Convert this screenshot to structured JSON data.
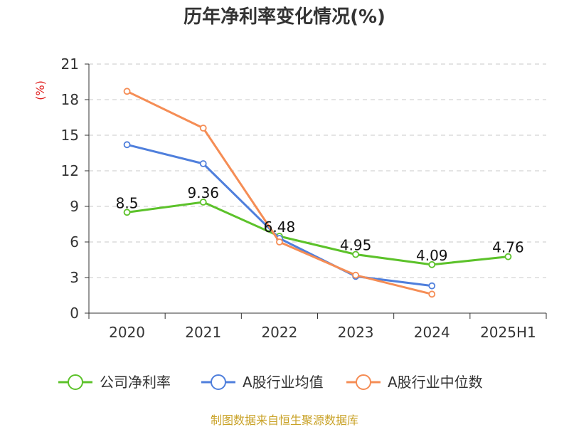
{
  "chart_data": {
    "type": "line",
    "title": "历年净利率变化情况(%)",
    "ylabel": "(%)",
    "xlabel": "",
    "categories": [
      "2020",
      "2021",
      "2022",
      "2023",
      "2024",
      "2025H1"
    ],
    "ylim": [
      0,
      21
    ],
    "yticks": [
      0,
      3,
      6,
      9,
      12,
      15,
      18,
      21
    ],
    "grid": true,
    "legend_position": "bottom",
    "series": [
      {
        "name": "公司净利率",
        "color": "#5cc22a",
        "values": [
          8.5,
          9.36,
          6.48,
          4.95,
          4.09,
          4.76
        ],
        "labels": [
          "8.5",
          "9.36",
          "6.48",
          "4.95",
          "4.09",
          "4.76"
        ]
      },
      {
        "name": "A股行业均值",
        "color": "#4f7fdc",
        "values": [
          14.2,
          12.6,
          6.3,
          3.1,
          2.3,
          null
        ]
      },
      {
        "name": "A股行业中位数",
        "color": "#f58d55",
        "values": [
          18.7,
          15.6,
          6.0,
          3.2,
          1.6,
          null
        ]
      }
    ]
  },
  "source": "制图数据来自恒生聚源数据库"
}
